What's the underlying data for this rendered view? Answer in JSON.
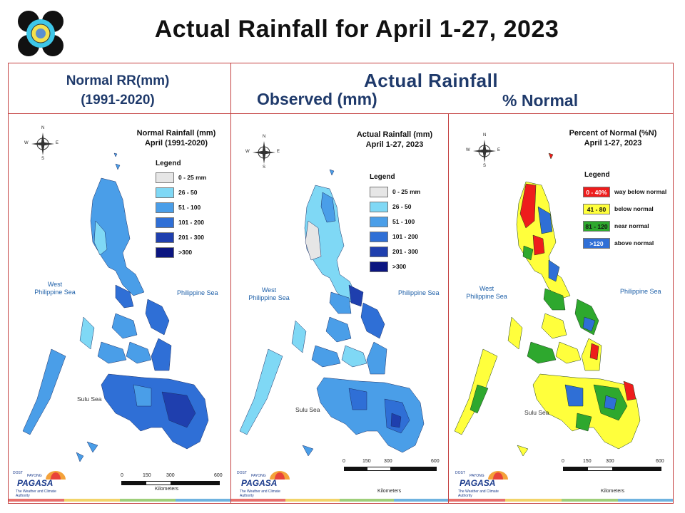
{
  "slide": {
    "title": "Actual Rainfall for April 1-27, 2023"
  },
  "headers": {
    "left_line1": "Normal RR(mm)",
    "left_line2": "(1991-2020)",
    "actual": "Actual Rainfall",
    "observed": "Observed (mm)",
    "percent": "% Normal"
  },
  "panels": [
    {
      "title_line1": "Normal Rainfall (mm)",
      "title_line2": "April (1991-2020)",
      "legend_title": "Legend",
      "legend": [
        {
          "label": "0 - 25 mm",
          "color": "#e6e6e6"
        },
        {
          "label": "26 - 50",
          "color": "#7fd8f5"
        },
        {
          "label": "51 - 100",
          "color": "#4a9ee8"
        },
        {
          "label": "101 - 200",
          "color": "#2f6fd6"
        },
        {
          "label": "201 - 300",
          "color": "#1f3fae"
        },
        {
          "label": ">300",
          "color": "#0b1580"
        }
      ],
      "west_sea": "West\nPhilippine Sea",
      "east_sea": "Philippine Sea",
      "sulu_sea": "Sulu Sea",
      "scale": {
        "ticks": [
          "0",
          "150",
          "300",
          "600"
        ],
        "unit": "Kilometers"
      }
    },
    {
      "title_line1": "Actual Rainfall (mm)",
      "title_line2": "April 1-27, 2023",
      "legend_title": "Legend",
      "legend": [
        {
          "label": "0 - 25 mm",
          "color": "#e6e6e6"
        },
        {
          "label": "26 - 50",
          "color": "#7fd8f5"
        },
        {
          "label": "51 - 100",
          "color": "#4a9ee8"
        },
        {
          "label": "101 - 200",
          "color": "#2f6fd6"
        },
        {
          "label": "201 - 300",
          "color": "#1f3fae"
        },
        {
          "label": ">300",
          "color": "#0b1580"
        }
      ],
      "west_sea": "West\nPhilippine Sea",
      "east_sea": "Philippine Sea",
      "sulu_sea": "Sulu Sea",
      "scale": {
        "ticks": [
          "0",
          "150",
          "300",
          "600"
        ],
        "unit": "Kilometers"
      }
    },
    {
      "title_line1": "Percent of Normal (%N)",
      "title_line2": "April 1-27, 2023",
      "legend_title": "Legend",
      "legend": [
        {
          "range": "0 - 40%",
          "desc": "way below normal",
          "color": "#ee1c1c",
          "text_color": "#ffffff"
        },
        {
          "range": "41 - 80",
          "desc": "below normal",
          "color": "#ffff3c",
          "text_color": "#111111"
        },
        {
          "range": "81 - 120",
          "desc": "near normal",
          "color": "#2ea82e",
          "text_color": "#111111"
        },
        {
          "range": ">120",
          "desc": "above normal",
          "color": "#2f6fd6",
          "text_color": "#ffffff"
        }
      ],
      "west_sea": "West\nPhilippine Sea",
      "east_sea": "Philippine Sea",
      "sulu_sea": "Sulu Sea",
      "scale": {
        "ticks": [
          "0",
          "150",
          "300",
          "600"
        ],
        "unit": "Kilometers"
      }
    }
  ],
  "compass": {
    "n": "N",
    "s": "S",
    "e": "E",
    "w": "W"
  },
  "branding": {
    "dost": "DOST",
    "payong": "PAYONG",
    "pagasa": "PAGASA",
    "tagline": "The Weather and Climate Authority"
  },
  "colors": {
    "frame": "#c44141",
    "header_text": "#1f3a6b",
    "foot_red": "#e8706c",
    "foot_yellow": "#f2d46a",
    "foot_green": "#9fcf7a",
    "foot_blue": "#6fb3e0"
  }
}
